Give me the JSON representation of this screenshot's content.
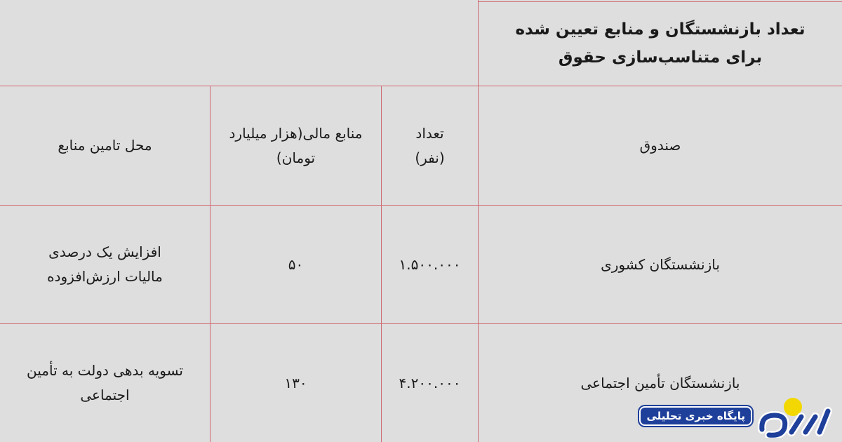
{
  "title": "تعداد بازنشستگان و منابع تعیین شده برای متناسب‌سازی حقوق",
  "headers": {
    "fund": "صندوق",
    "count": "تعداد (نفر)",
    "resources": "منابع مالی(هزار میلیارد تومان)",
    "source": "محل تامین منابع"
  },
  "rows": [
    {
      "fund": "بازنشستگان کشوری",
      "count": "۱.۵۰۰.۰۰۰",
      "resources": "۵۰",
      "source": "افزایش یک درصدی مالیات ارزش‌افزوده"
    },
    {
      "fund": "بازنشستگان تأمین اجتماعی",
      "count": "۴.۲۰۰.۰۰۰",
      "resources": "۱۳۰",
      "source": "تسویه بدهی دولت به تأمین اجتماعی"
    }
  ],
  "logo": {
    "name": "رویداد",
    "tagline": "پایگاه خبری تحلیلی"
  },
  "colors": {
    "background": "#dedede",
    "grid": "#cf6a72",
    "logo_blue": "#1e3f9a",
    "logo_yellow": "#f2d800"
  }
}
